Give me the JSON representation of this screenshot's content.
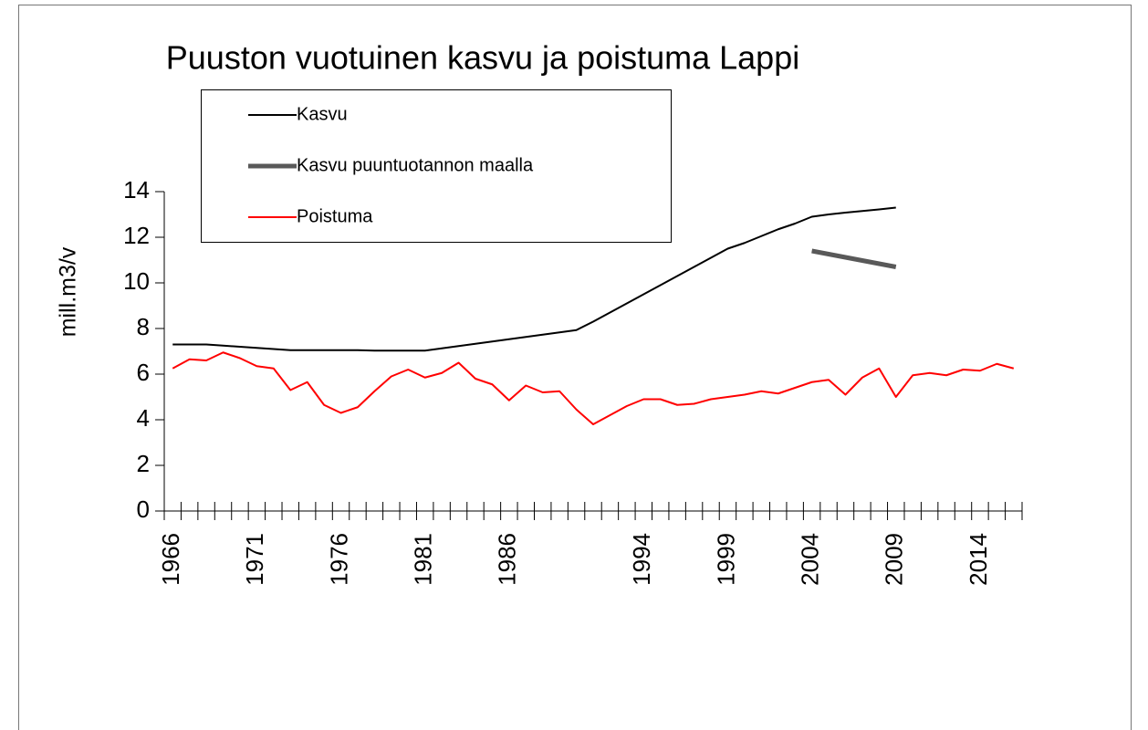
{
  "chart_data": {
    "type": "line",
    "title": "Puuston vuotuinen kasvu ja poistuma Lappi",
    "y_label": "mill.m3/v",
    "categories": [
      "1966",
      null,
      null,
      null,
      null,
      "1971",
      null,
      null,
      null,
      null,
      "1976",
      null,
      null,
      null,
      null,
      "1981",
      null,
      null,
      null,
      null,
      "1986",
      null,
      null,
      null,
      null,
      null,
      null,
      null,
      "1994",
      null,
      null,
      null,
      null,
      "1999",
      null,
      null,
      null,
      null,
      "2004",
      null,
      null,
      null,
      null,
      "2009",
      null,
      null,
      null,
      null,
      "2014",
      null,
      null
    ],
    "series": [
      {
        "name": "Kasvu",
        "color": "#000000",
        "width": 2,
        "values": [
          7.3,
          7.3,
          7.3,
          7.25,
          7.2,
          7.15,
          7.1,
          7.05,
          7.05,
          7.05,
          7.05,
          7.05,
          7.03,
          7.03,
          7.03,
          7.03,
          7.13,
          7.23,
          7.33,
          7.43,
          7.53,
          7.63,
          7.73,
          7.83,
          7.93,
          8.3,
          8.7,
          9.1,
          9.5,
          9.9,
          10.3,
          10.7,
          11.1,
          11.5,
          11.75,
          12.05,
          12.35,
          12.6,
          12.9,
          13.0,
          13.08,
          13.15,
          13.22,
          13.3,
          null,
          null,
          null,
          null,
          null,
          null,
          null
        ]
      },
      {
        "name": "Kasvu puuntuotannon maalla",
        "color": "#595959",
        "width": 5,
        "values": [
          null,
          null,
          null,
          null,
          null,
          null,
          null,
          null,
          null,
          null,
          null,
          null,
          null,
          null,
          null,
          null,
          null,
          null,
          null,
          null,
          null,
          null,
          null,
          null,
          null,
          null,
          null,
          null,
          null,
          null,
          null,
          null,
          null,
          null,
          null,
          null,
          null,
          null,
          11.4,
          11.26,
          11.12,
          10.98,
          10.84,
          10.7,
          null,
          null,
          null,
          null,
          null,
          null,
          null
        ]
      },
      {
        "name": "Poistuma",
        "color": "#ff0000",
        "width": 2,
        "values": [
          6.25,
          6.65,
          6.6,
          6.95,
          6.7,
          6.35,
          6.25,
          5.3,
          5.65,
          4.65,
          4.3,
          4.55,
          5.25,
          5.9,
          6.2,
          5.85,
          6.05,
          6.5,
          5.8,
          5.55,
          4.85,
          5.5,
          5.2,
          5.25,
          4.45,
          3.8,
          4.2,
          4.6,
          4.9,
          4.9,
          4.65,
          4.7,
          4.9,
          5.0,
          5.1,
          5.25,
          5.15,
          5.4,
          5.65,
          5.75,
          5.1,
          5.85,
          6.25,
          5.0,
          5.95,
          6.05,
          5.95,
          6.2,
          6.15,
          6.45,
          6.25
        ]
      }
    ],
    "ylim": [
      0,
      14
    ],
    "yticks": [
      0,
      2,
      4,
      6,
      8,
      10,
      12,
      14
    ],
    "grid": false,
    "legend": "upper left"
  }
}
